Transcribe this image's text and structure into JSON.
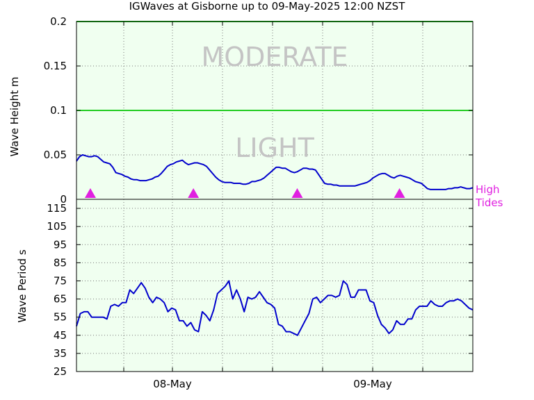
{
  "chart_data": {
    "title": "IGWaves at Gisborne up to 09-May-2025 12:00 NZST",
    "plot_background": "#f0fff0",
    "x": {
      "tick_labels": [
        "08-May",
        "09-May"
      ]
    },
    "panels": [
      {
        "type": "line",
        "ylabel": "Wave Height m",
        "ylim": [
          0,
          0.2
        ],
        "yticks": [
          0,
          0.05,
          0.1,
          0.15,
          0.2
        ],
        "ytick_labels": [
          "0",
          "0.05",
          "0.1",
          "0.15",
          "0.2"
        ],
        "grid": true,
        "line_color": "#0000cc",
        "thresholds": [
          {
            "value": 0.1,
            "color": "#22cc22"
          },
          {
            "value": 0.2,
            "color": "#22cc22"
          }
        ],
        "zone_labels": [
          {
            "text": "MODERATE",
            "y": 0.16
          },
          {
            "text": "LIGHT",
            "y": 0.058
          }
        ],
        "high_tides": {
          "label_line1": "High",
          "label_line2": "Tides",
          "color": "#e020e0",
          "x_fractions": [
            0.035,
            0.295,
            0.557,
            0.815
          ]
        },
        "values": [
          0.043,
          0.048,
          0.05,
          0.049,
          0.048,
          0.048,
          0.049,
          0.048,
          0.045,
          0.042,
          0.041,
          0.04,
          0.036,
          0.03,
          0.029,
          0.028,
          0.026,
          0.025,
          0.023,
          0.022,
          0.022,
          0.021,
          0.021,
          0.021,
          0.022,
          0.023,
          0.025,
          0.026,
          0.029,
          0.033,
          0.037,
          0.039,
          0.04,
          0.042,
          0.043,
          0.044,
          0.041,
          0.039,
          0.04,
          0.041,
          0.041,
          0.04,
          0.039,
          0.037,
          0.033,
          0.029,
          0.025,
          0.022,
          0.02,
          0.019,
          0.019,
          0.019,
          0.018,
          0.018,
          0.018,
          0.017,
          0.017,
          0.018,
          0.02,
          0.02,
          0.021,
          0.022,
          0.024,
          0.027,
          0.03,
          0.033,
          0.036,
          0.036,
          0.035,
          0.035,
          0.033,
          0.031,
          0.03,
          0.031,
          0.033,
          0.035,
          0.035,
          0.034,
          0.034,
          0.033,
          0.028,
          0.023,
          0.018,
          0.017,
          0.017,
          0.016,
          0.016,
          0.015,
          0.015,
          0.015,
          0.015,
          0.015,
          0.015,
          0.016,
          0.017,
          0.018,
          0.019,
          0.021,
          0.024,
          0.026,
          0.028,
          0.029,
          0.029,
          0.027,
          0.025,
          0.024,
          0.026,
          0.027,
          0.026,
          0.025,
          0.024,
          0.022,
          0.02,
          0.019,
          0.018,
          0.015,
          0.012,
          0.011,
          0.011,
          0.011,
          0.011,
          0.011,
          0.011,
          0.012,
          0.012,
          0.013,
          0.013,
          0.014,
          0.013,
          0.012,
          0.012,
          0.013
        ]
      },
      {
        "type": "line",
        "ylabel": "Wave Period s",
        "ylim": [
          25,
          120
        ],
        "yticks": [
          25,
          35,
          45,
          55,
          65,
          75,
          85,
          95,
          105,
          115
        ],
        "ytick_labels": [
          "25",
          "35",
          "45",
          "55",
          "65",
          "75",
          "85",
          "95",
          "105",
          "115"
        ],
        "grid": true,
        "line_color": "#0000cc",
        "values": [
          50,
          57,
          58,
          58,
          55,
          55,
          55,
          55,
          54,
          61,
          62,
          61,
          63,
          63,
          70,
          68,
          71,
          74,
          71,
          66,
          63,
          66,
          65,
          63,
          58,
          60,
          59,
          53,
          53,
          50,
          52,
          48,
          47,
          58,
          56,
          53,
          59,
          68,
          70,
          72,
          75,
          65,
          70,
          65,
          58,
          66,
          65,
          66,
          69,
          66,
          63,
          62,
          60,
          51,
          50,
          47,
          47,
          46,
          45,
          49,
          53,
          57,
          65,
          66,
          63,
          65,
          67,
          67,
          66,
          67,
          75,
          73,
          66,
          66,
          70,
          70,
          70,
          64,
          63,
          56,
          51,
          49,
          46,
          48,
          53,
          51,
          51,
          54,
          54,
          59,
          61,
          61,
          61,
          64,
          62,
          61,
          61,
          63,
          64,
          64,
          65,
          64,
          62,
          60,
          59
        ]
      }
    ]
  }
}
